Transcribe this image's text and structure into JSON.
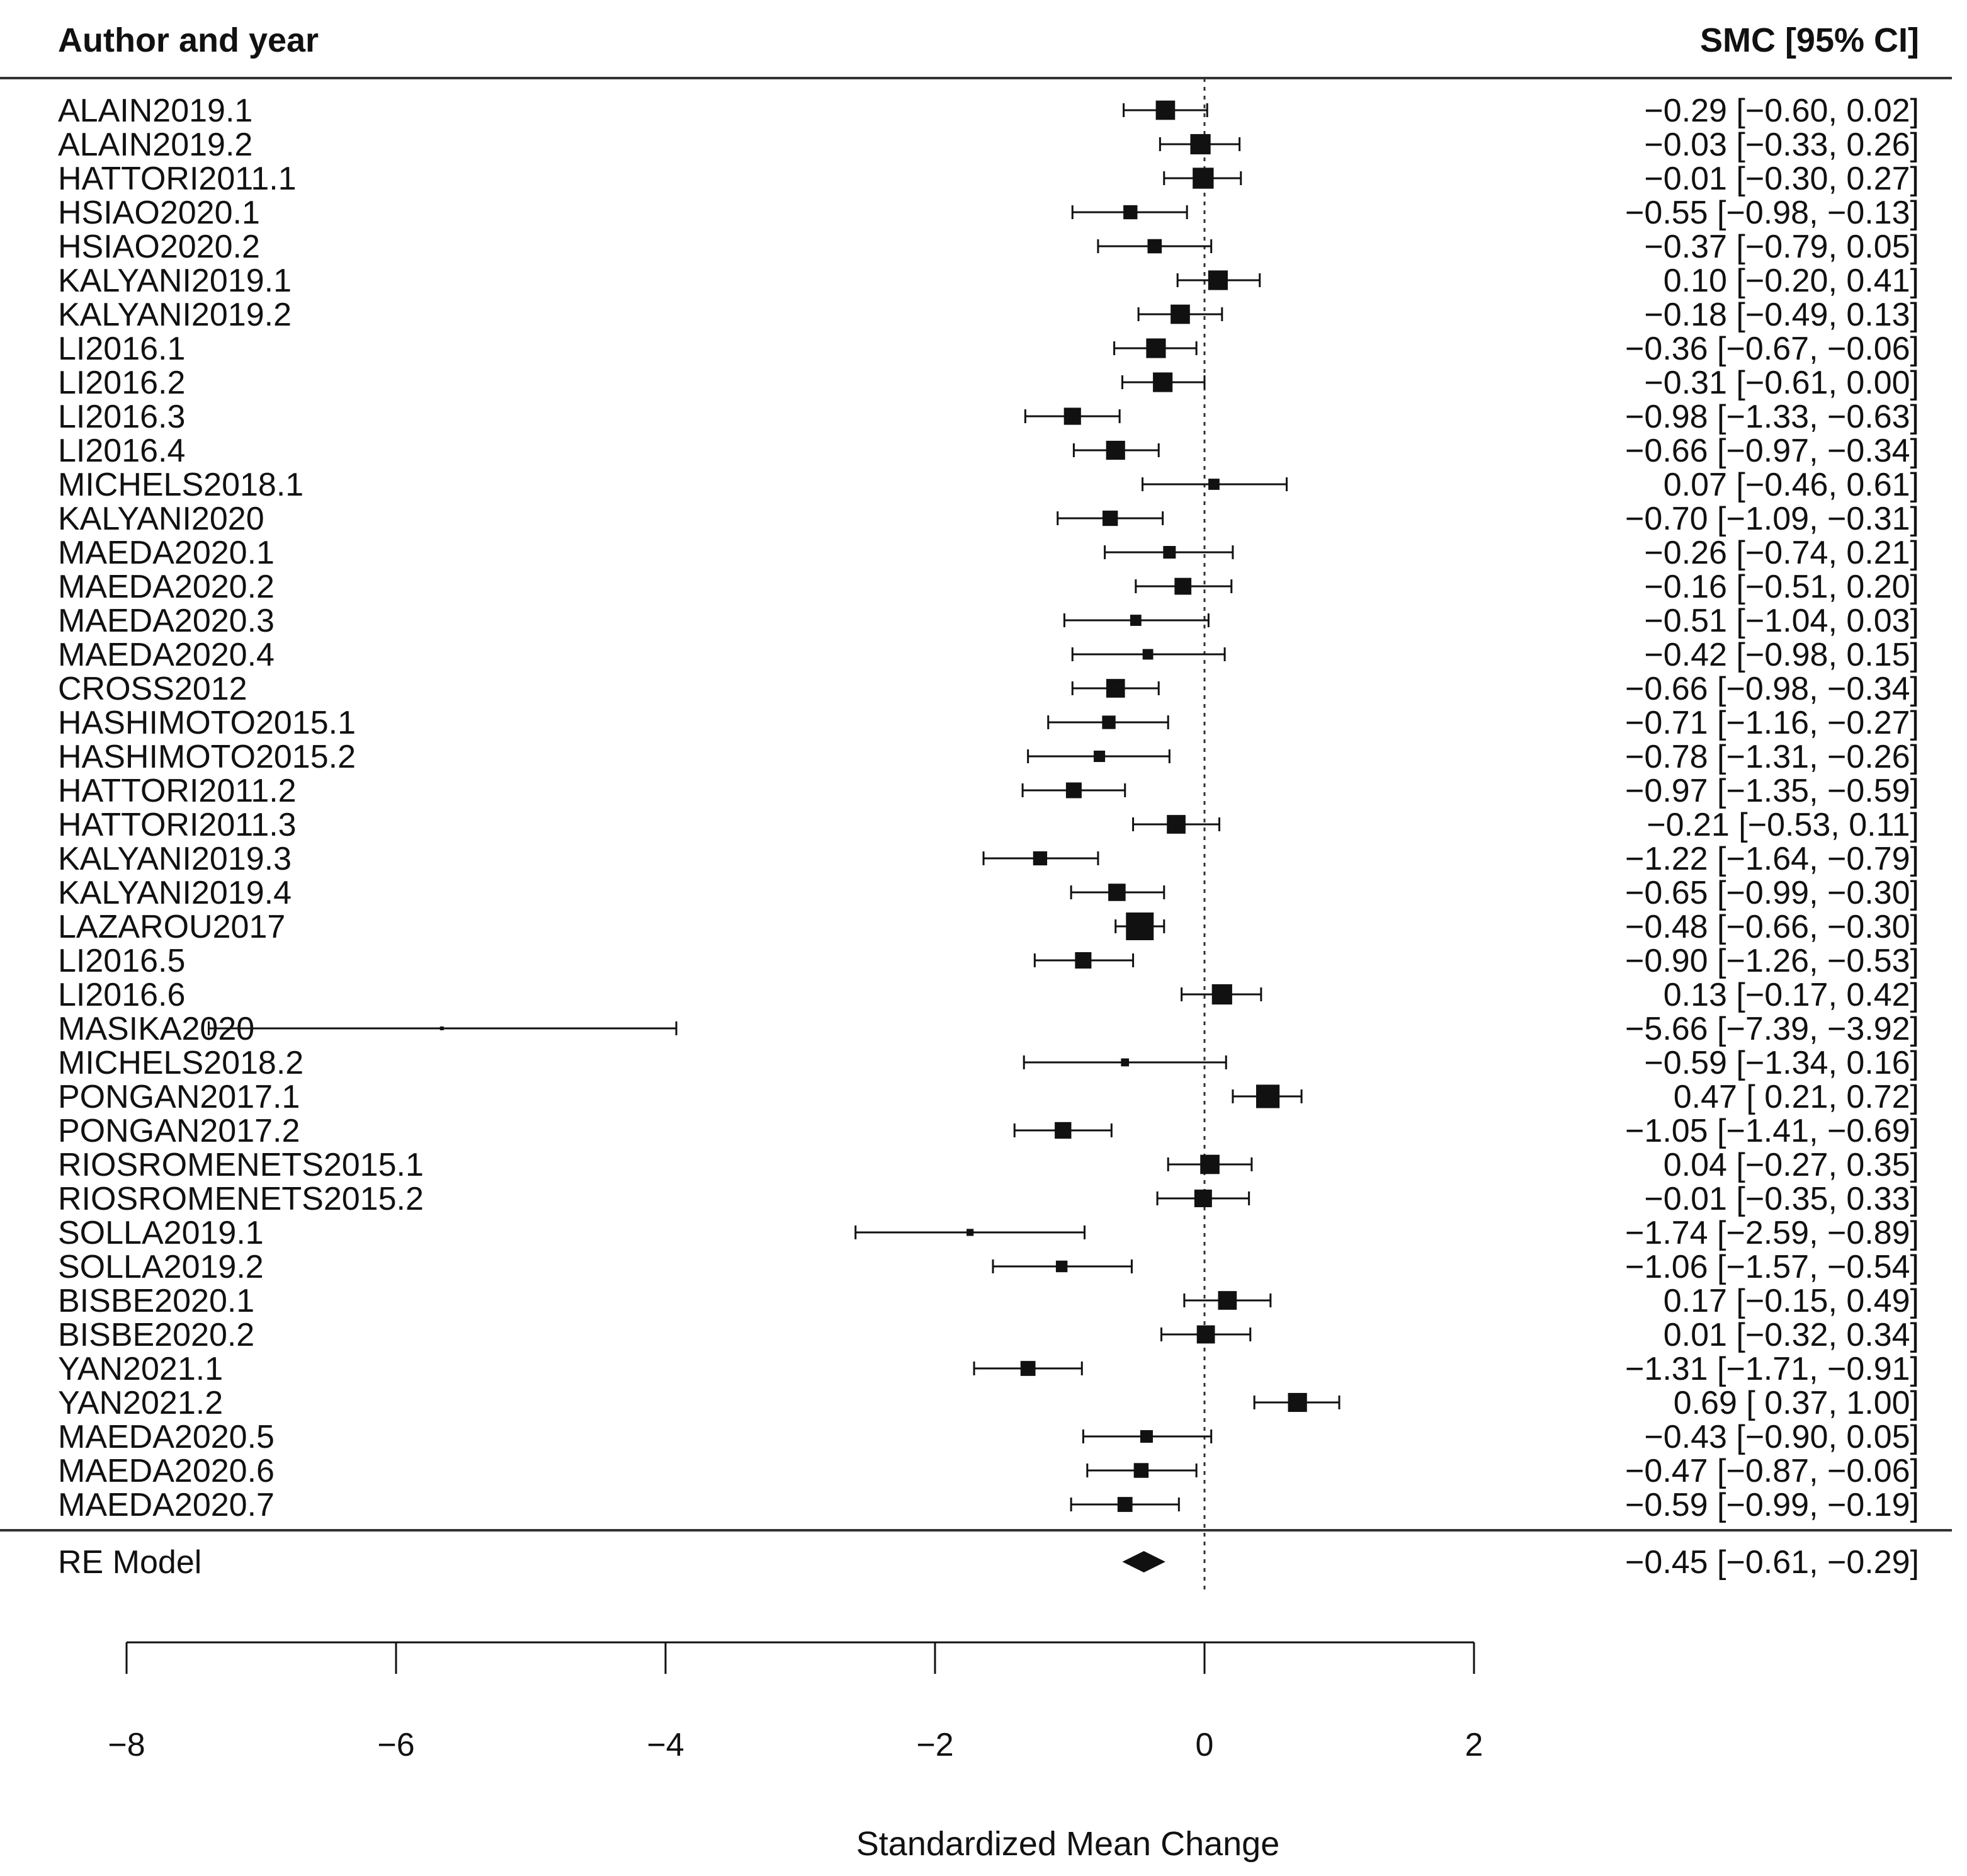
{
  "chart_data": {
    "type": "forest",
    "header_left": "Author and year",
    "header_right": "SMC [95% CI]",
    "xlabel": "Standardized Mean Change",
    "xlim": [
      -8,
      2
    ],
    "xticks": [
      "−8",
      "−6",
      "−4",
      "−2",
      "0",
      "2"
    ],
    "reference_line": 0,
    "studies": [
      {
        "label": "ALAIN2019.1",
        "est": -0.29,
        "lo": -0.6,
        "hi": 0.02,
        "text": "−0.29 [−0.60,  0.02]"
      },
      {
        "label": "ALAIN2019.2",
        "est": -0.03,
        "lo": -0.33,
        "hi": 0.26,
        "text": "−0.03 [−0.33,  0.26]"
      },
      {
        "label": "HATTORI2011.1",
        "est": -0.01,
        "lo": -0.3,
        "hi": 0.27,
        "text": "−0.01 [−0.30,  0.27]"
      },
      {
        "label": "HSIAO2020.1",
        "est": -0.55,
        "lo": -0.98,
        "hi": -0.13,
        "text": "−0.55 [−0.98, −0.13]"
      },
      {
        "label": "HSIAO2020.2",
        "est": -0.37,
        "lo": -0.79,
        "hi": 0.05,
        "text": "−0.37 [−0.79,  0.05]"
      },
      {
        "label": "KALYANI2019.1",
        "est": 0.1,
        "lo": -0.2,
        "hi": 0.41,
        "text": "0.10 [−0.20,  0.41]"
      },
      {
        "label": "KALYANI2019.2",
        "est": -0.18,
        "lo": -0.49,
        "hi": 0.13,
        "text": "−0.18 [−0.49,  0.13]"
      },
      {
        "label": "LI2016.1",
        "est": -0.36,
        "lo": -0.67,
        "hi": -0.06,
        "text": "−0.36 [−0.67, −0.06]"
      },
      {
        "label": "LI2016.2",
        "est": -0.31,
        "lo": -0.61,
        "hi": 0.0,
        "text": "−0.31 [−0.61,  0.00]"
      },
      {
        "label": "LI2016.3",
        "est": -0.98,
        "lo": -1.33,
        "hi": -0.63,
        "text": "−0.98 [−1.33, −0.63]"
      },
      {
        "label": "LI2016.4",
        "est": -0.66,
        "lo": -0.97,
        "hi": -0.34,
        "text": "−0.66 [−0.97, −0.34]"
      },
      {
        "label": "MICHELS2018.1",
        "est": 0.07,
        "lo": -0.46,
        "hi": 0.61,
        "text": "0.07 [−0.46,  0.61]"
      },
      {
        "label": "KALYANI2020",
        "est": -0.7,
        "lo": -1.09,
        "hi": -0.31,
        "text": "−0.70 [−1.09, −0.31]"
      },
      {
        "label": "MAEDA2020.1",
        "est": -0.26,
        "lo": -0.74,
        "hi": 0.21,
        "text": "−0.26 [−0.74,  0.21]"
      },
      {
        "label": "MAEDA2020.2",
        "est": -0.16,
        "lo": -0.51,
        "hi": 0.2,
        "text": "−0.16 [−0.51,  0.20]"
      },
      {
        "label": "MAEDA2020.3",
        "est": -0.51,
        "lo": -1.04,
        "hi": 0.03,
        "text": "−0.51 [−1.04,  0.03]"
      },
      {
        "label": "MAEDA2020.4",
        "est": -0.42,
        "lo": -0.98,
        "hi": 0.15,
        "text": "−0.42 [−0.98,  0.15]"
      },
      {
        "label": "CROSS2012",
        "est": -0.66,
        "lo": -0.98,
        "hi": -0.34,
        "text": "−0.66 [−0.98, −0.34]"
      },
      {
        "label": "HASHIMOTO2015.1",
        "est": -0.71,
        "lo": -1.16,
        "hi": -0.27,
        "text": "−0.71 [−1.16, −0.27]"
      },
      {
        "label": "HASHIMOTO2015.2",
        "est": -0.78,
        "lo": -1.31,
        "hi": -0.26,
        "text": "−0.78 [−1.31, −0.26]"
      },
      {
        "label": "HATTORI2011.2",
        "est": -0.97,
        "lo": -1.35,
        "hi": -0.59,
        "text": "−0.97 [−1.35, −0.59]"
      },
      {
        "label": "HATTORI2011.3",
        "est": -0.21,
        "lo": -0.53,
        "hi": 0.11,
        "text": "−0.21 [−0.53,  0.11]"
      },
      {
        "label": "KALYANI2019.3",
        "est": -1.22,
        "lo": -1.64,
        "hi": -0.79,
        "text": "−1.22 [−1.64, −0.79]"
      },
      {
        "label": "KALYANI2019.4",
        "est": -0.65,
        "lo": -0.99,
        "hi": -0.3,
        "text": "−0.65 [−0.99, −0.30]"
      },
      {
        "label": "LAZAROU2017",
        "est": -0.48,
        "lo": -0.66,
        "hi": -0.3,
        "text": "−0.48 [−0.66, −0.30]"
      },
      {
        "label": "LI2016.5",
        "est": -0.9,
        "lo": -1.26,
        "hi": -0.53,
        "text": "−0.90 [−1.26, −0.53]"
      },
      {
        "label": "LI2016.6",
        "est": 0.13,
        "lo": -0.17,
        "hi": 0.42,
        "text": "0.13 [−0.17,  0.42]"
      },
      {
        "label": "MASIKA2020",
        "est": -5.66,
        "lo": -7.39,
        "hi": -3.92,
        "text": "−5.66 [−7.39, −3.92]"
      },
      {
        "label": "MICHELS2018.2",
        "est": -0.59,
        "lo": -1.34,
        "hi": 0.16,
        "text": "−0.59 [−1.34,  0.16]"
      },
      {
        "label": "PONGAN2017.1",
        "est": 0.47,
        "lo": 0.21,
        "hi": 0.72,
        "text": "0.47 [ 0.21,  0.72]"
      },
      {
        "label": "PONGAN2017.2",
        "est": -1.05,
        "lo": -1.41,
        "hi": -0.69,
        "text": "−1.05 [−1.41, −0.69]"
      },
      {
        "label": "RIOSROMENETS2015.1",
        "est": 0.04,
        "lo": -0.27,
        "hi": 0.35,
        "text": "0.04 [−0.27,  0.35]"
      },
      {
        "label": "RIOSROMENETS2015.2",
        "est": -0.01,
        "lo": -0.35,
        "hi": 0.33,
        "text": "−0.01 [−0.35,  0.33]"
      },
      {
        "label": "SOLLA2019.1",
        "est": -1.74,
        "lo": -2.59,
        "hi": -0.89,
        "text": "−1.74 [−2.59, −0.89]"
      },
      {
        "label": "SOLLA2019.2",
        "est": -1.06,
        "lo": -1.57,
        "hi": -0.54,
        "text": "−1.06 [−1.57, −0.54]"
      },
      {
        "label": "BISBE2020.1",
        "est": 0.17,
        "lo": -0.15,
        "hi": 0.49,
        "text": "0.17 [−0.15,  0.49]"
      },
      {
        "label": "BISBE2020.2",
        "est": 0.01,
        "lo": -0.32,
        "hi": 0.34,
        "text": "0.01 [−0.32,  0.34]"
      },
      {
        "label": "YAN2021.1",
        "est": -1.31,
        "lo": -1.71,
        "hi": -0.91,
        "text": "−1.31 [−1.71, −0.91]"
      },
      {
        "label": "YAN2021.2",
        "est": 0.69,
        "lo": 0.37,
        "hi": 1.0,
        "text": "0.69 [ 0.37,  1.00]"
      },
      {
        "label": "MAEDA2020.5",
        "est": -0.43,
        "lo": -0.9,
        "hi": 0.05,
        "text": "−0.43 [−0.90,  0.05]"
      },
      {
        "label": "MAEDA2020.6",
        "est": -0.47,
        "lo": -0.87,
        "hi": -0.06,
        "text": "−0.47 [−0.87, −0.06]"
      },
      {
        "label": "MAEDA2020.7",
        "est": -0.59,
        "lo": -0.99,
        "hi": -0.19,
        "text": "−0.59 [−0.99, −0.19]"
      }
    ],
    "summary": {
      "label": "RE Model",
      "est": -0.45,
      "lo": -0.61,
      "hi": -0.29,
      "text": "−0.45 [−0.61, −0.29]"
    },
    "colors": {
      "ink": "#111111",
      "background": "#ffffff"
    }
  }
}
